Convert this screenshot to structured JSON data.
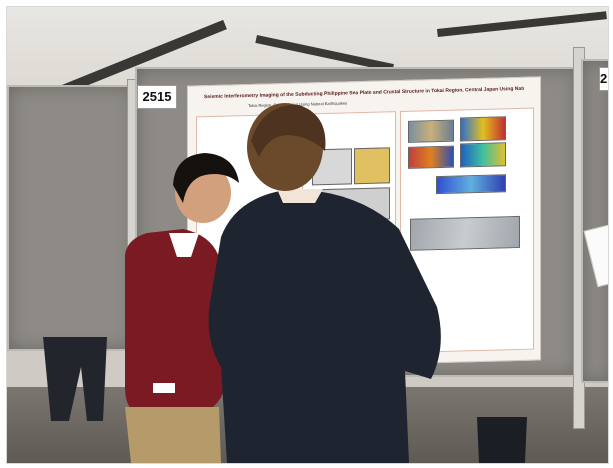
{
  "scene": {
    "booth_number": "2515",
    "corner_number": "2",
    "poster": {
      "title": "Seismic Interferometry Imaging of the Subducting Philippine Sea Plate and Crustal Structure in Tokai Region, Central Japan Using Natural Earthquakes",
      "authors": "Tokai Region, Central Japan Using Natural Earthquakes"
    },
    "colors": {
      "board": "#8e8b86",
      "poster": "#f7f3ee",
      "sweater": "#7a1a22",
      "jacket": "#1e2430",
      "trousers": "#b59a6a"
    }
  }
}
